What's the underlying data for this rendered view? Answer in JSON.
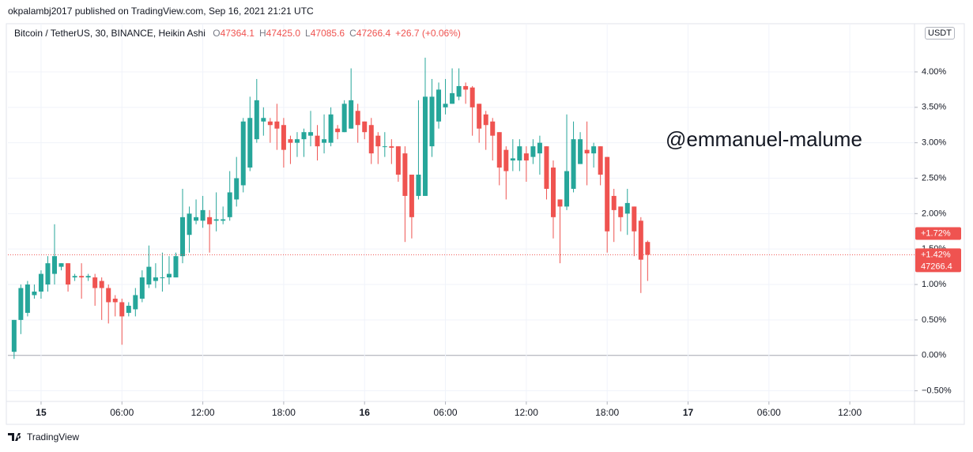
{
  "header": {
    "publisher": "okpalambj2017 published on TradingView.com, Sep 16, 2021 21:21 UTC"
  },
  "chart_data": {
    "type": "candlestick",
    "title": "Bitcoin / TetherUS, 30, BINANCE, Heikin Ashi",
    "ohlc_legend": [
      {
        "key": "O",
        "value": "47364.1"
      },
      {
        "key": "H",
        "value": "47425.0"
      },
      {
        "key": "L",
        "value": "47085.6"
      },
      {
        "key": "C",
        "value": "47266.4"
      }
    ],
    "change": "+26.7 (+0.06%)",
    "currency": "USDT",
    "watermark": "@emmanuel-malume",
    "x": [
      -2,
      -1.5,
      -1,
      -0.5,
      0,
      0.5,
      1,
      1.5,
      2,
      2.5,
      3,
      3.5,
      4,
      4.5,
      5,
      5.5,
      6,
      6.5,
      7,
      7.5,
      8,
      8.5,
      9,
      9.5,
      10,
      10.5,
      11,
      11.5,
      12,
      12.5,
      13,
      13.5,
      14,
      14.5,
      15,
      15.5,
      16,
      16.5,
      17,
      17.5,
      18,
      18.5,
      19,
      19.5,
      20,
      20.5,
      21,
      21.5,
      22,
      22.5,
      23,
      23.5,
      24,
      24.5,
      25,
      25.5,
      26,
      26.5,
      27,
      27.5,
      28,
      28.5,
      29,
      29.5,
      30,
      30.5,
      31,
      31.5,
      32,
      32.5,
      33,
      33.5,
      34,
      34.5,
      35,
      35.5,
      36,
      36.5,
      37,
      37.5,
      38,
      38.5,
      39,
      39.5,
      40,
      40.5,
      41,
      41.5,
      42,
      42.5,
      43,
      43.5,
      44,
      44.5,
      45
    ],
    "open": [
      0.05,
      0.5,
      0.6,
      0.85,
      0.9,
      1.0,
      1.15,
      1.25,
      1.3,
      1.1,
      1.12,
      1.1,
      1.1,
      1.05,
      0.95,
      0.8,
      0.75,
      0.6,
      0.65,
      0.8,
      1.0,
      1.05,
      1.1,
      1.1,
      1.1,
      1.4,
      1.7,
      1.9,
      1.9,
      1.95,
      1.9,
      1.9,
      1.95,
      2.2,
      2.4,
      2.65,
      3.05,
      3.3,
      3.3,
      3.3,
      3.25,
      3.05,
      3.0,
      3.05,
      3.1,
      3.1,
      3.0,
      3.0,
      3.2,
      3.15,
      3.2,
      3.45,
      3.3,
      3.25,
      3.1,
      2.95,
      2.95,
      2.95,
      2.85,
      2.55,
      2.25,
      2.25,
      2.95,
      3.3,
      3.5,
      3.55,
      3.65,
      3.8,
      3.78,
      3.55,
      3.4,
      3.3,
      3.15,
      2.9,
      2.75,
      2.75,
      2.85,
      2.8,
      2.85,
      2.95,
      2.65,
      2.2,
      2.1,
      2.35,
      2.7,
      2.9,
      2.85,
      2.95,
      2.8,
      2.25,
      2.1,
      2.0,
      2.1,
      1.9,
      1.6
    ],
    "high": [
      0.5,
      1.0,
      1.05,
      1.0,
      1.2,
      1.4,
      1.85,
      1.3,
      1.3,
      1.15,
      1.3,
      1.15,
      1.15,
      1.1,
      1.0,
      0.85,
      0.8,
      0.75,
      0.95,
      1.2,
      1.55,
      1.3,
      1.45,
      1.4,
      1.45,
      2.35,
      2.1,
      2.2,
      2.25,
      2.05,
      2.3,
      2.1,
      2.6,
      2.8,
      3.35,
      3.65,
      3.9,
      3.5,
      3.35,
      3.55,
      3.35,
      3.1,
      3.15,
      3.2,
      3.45,
      3.25,
      3.4,
      3.5,
      3.25,
      3.6,
      4.05,
      3.55,
      3.3,
      3.35,
      3.15,
      3.15,
      3.05,
      2.95,
      2.95,
      2.55,
      3.6,
      4.2,
      3.9,
      3.85,
      3.9,
      4.05,
      4.05,
      3.85,
      3.8,
      3.55,
      3.45,
      3.35,
      3.15,
      2.95,
      3.05,
      3.05,
      2.95,
      3.05,
      3.1,
      2.95,
      2.75,
      2.2,
      3.4,
      3.3,
      3.15,
      3.3,
      3.0,
      2.95,
      2.8,
      2.35,
      2.1,
      2.35,
      2.1,
      1.95,
      1.62
    ],
    "low": [
      -0.05,
      0.3,
      0.55,
      0.8,
      0.8,
      0.9,
      1.0,
      1.2,
      0.9,
      1.05,
      0.8,
      1.05,
      0.7,
      0.5,
      0.45,
      0.55,
      0.15,
      0.55,
      0.55,
      0.75,
      0.95,
      0.95,
      0.9,
      1.0,
      1.1,
      1.3,
      1.45,
      1.85,
      1.8,
      1.45,
      1.75,
      1.85,
      1.9,
      2.1,
      2.3,
      2.6,
      3.0,
      3.1,
      3.0,
      2.9,
      2.65,
      2.7,
      2.8,
      2.8,
      2.95,
      2.75,
      2.85,
      2.95,
      3.05,
      3.15,
      3.2,
      3.0,
      3.05,
      2.7,
      2.7,
      2.8,
      2.7,
      2.45,
      1.6,
      1.65,
      2.2,
      2.25,
      2.8,
      3.2,
      3.4,
      3.55,
      3.6,
      3.55,
      3.1,
      3.0,
      2.9,
      2.75,
      2.4,
      2.2,
      2.6,
      2.6,
      2.45,
      2.7,
      2.55,
      2.2,
      1.65,
      1.3,
      2.05,
      2.3,
      2.7,
      2.4,
      2.65,
      2.4,
      1.45,
      1.6,
      1.75,
      1.7,
      1.4,
      0.88,
      1.05
    ],
    "close": [
      0.5,
      0.95,
      1.0,
      0.9,
      1.15,
      1.3,
      1.4,
      1.3,
      1.0,
      1.12,
      1.1,
      1.12,
      0.95,
      0.95,
      0.75,
      0.75,
      0.55,
      0.7,
      0.85,
      1.1,
      1.25,
      1.1,
      1.1,
      1.15,
      1.4,
      1.95,
      2.0,
      1.95,
      2.05,
      1.85,
      1.92,
      1.92,
      2.3,
      2.5,
      3.3,
      3.35,
      3.6,
      3.35,
      3.25,
      3.2,
      2.9,
      3.0,
      3.05,
      3.15,
      3.15,
      2.95,
      3.05,
      3.4,
      3.15,
      3.55,
      3.6,
      3.25,
      3.15,
      2.85,
      2.95,
      2.95,
      2.93,
      2.55,
      2.25,
      1.95,
      2.55,
      3.65,
      3.65,
      3.75,
      3.55,
      3.7,
      3.8,
      3.75,
      3.5,
      3.2,
      3.25,
      3.1,
      2.65,
      2.6,
      2.78,
      2.95,
      2.75,
      2.95,
      3.0,
      2.35,
      1.95,
      2.1,
      2.6,
      3.05,
      3.05,
      2.85,
      2.95,
      2.55,
      1.75,
      2.05,
      1.95,
      2.15,
      1.75,
      1.35,
      1.42
    ],
    "up_color": "#26a69a",
    "down_color": "#ef5350",
    "xlim": [
      -2.46,
      64.8
    ],
    "xticks": [
      {
        "value": 0,
        "label": "15"
      },
      {
        "value": 6,
        "label": "06:00"
      },
      {
        "value": 12,
        "label": "12:00"
      },
      {
        "value": 18,
        "label": "18:00"
      },
      {
        "value": 24,
        "label": "16"
      },
      {
        "value": 30,
        "label": "06:00"
      },
      {
        "value": 36,
        "label": "12:00"
      },
      {
        "value": 42,
        "label": "18:00"
      },
      {
        "value": 48,
        "label": "17"
      },
      {
        "value": 54,
        "label": "06:00"
      },
      {
        "value": 60,
        "label": "12:00"
      }
    ],
    "ylim": [
      -0.65,
      4.68
    ],
    "yticks": [
      {
        "value": -0.5,
        "label": "−0.50%"
      },
      {
        "value": 0,
        "label": "0.00%"
      },
      {
        "value": 0.5,
        "label": "0.50%"
      },
      {
        "value": 1,
        "label": "1.00%"
      },
      {
        "value": 1.5,
        "label": "1.50%"
      },
      {
        "value": 2,
        "label": "2.00%"
      },
      {
        "value": 2.5,
        "label": "2.50%"
      },
      {
        "value": 3,
        "label": "3.00%"
      },
      {
        "value": 3.5,
        "label": "3.50%"
      },
      {
        "value": 4,
        "label": "4.00%"
      }
    ],
    "grid": true,
    "price_labels": [
      {
        "value": 1.72,
        "label": "+1.72%"
      },
      {
        "value": 1.42,
        "label": "+1.42%",
        "price": "47266.4"
      }
    ]
  },
  "footer": {
    "brand": "TradingView"
  }
}
